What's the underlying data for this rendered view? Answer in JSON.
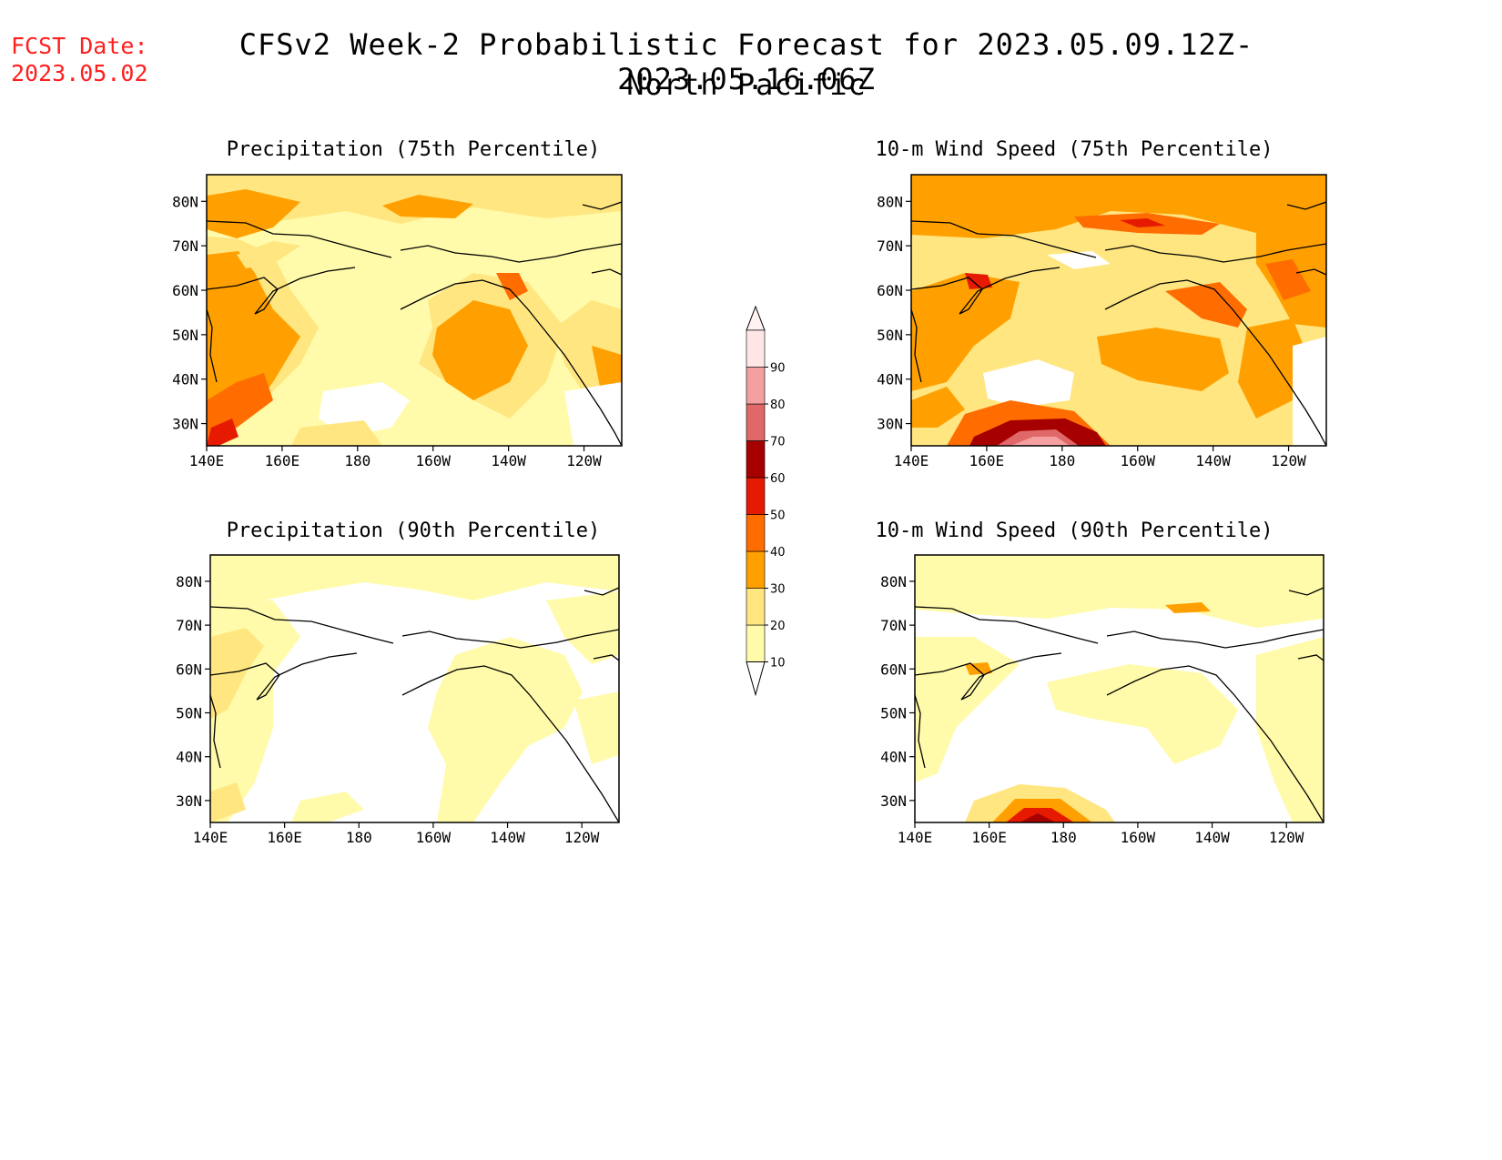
{
  "header": {
    "fcst_label": "FCST Date:",
    "fcst_date": "2023.05.02",
    "title": "CFSv2 Week-2 Probabilistic Forecast for 2023.05.09.12Z-2023.05.16.06Z",
    "region": "North Pacific"
  },
  "panels": [
    {
      "title": "Precipitation (75th Percentile)"
    },
    {
      "title": "10-m Wind Speed (75th Percentile)"
    },
    {
      "title": "Precipitation (90th Percentile)"
    },
    {
      "title": "10-m Wind Speed (90th Percentile)"
    }
  ],
  "axes": {
    "lat_labels": [
      "80N",
      "70N",
      "60N",
      "50N",
      "40N",
      "30N"
    ],
    "lon_labels": [
      "140E",
      "160E",
      "180",
      "160W",
      "140W",
      "120W"
    ]
  },
  "colorbar": {
    "labels": [
      "10",
      "20",
      "30",
      "40",
      "50",
      "60",
      "70",
      "80",
      "90"
    ],
    "colors": [
      "#fffbaa",
      "#ffe680",
      "#ffa000",
      "#ff6c00",
      "#e61a00",
      "#a60000",
      "#e06868",
      "#f4a0a0",
      "#ffe6e6"
    ]
  }
}
